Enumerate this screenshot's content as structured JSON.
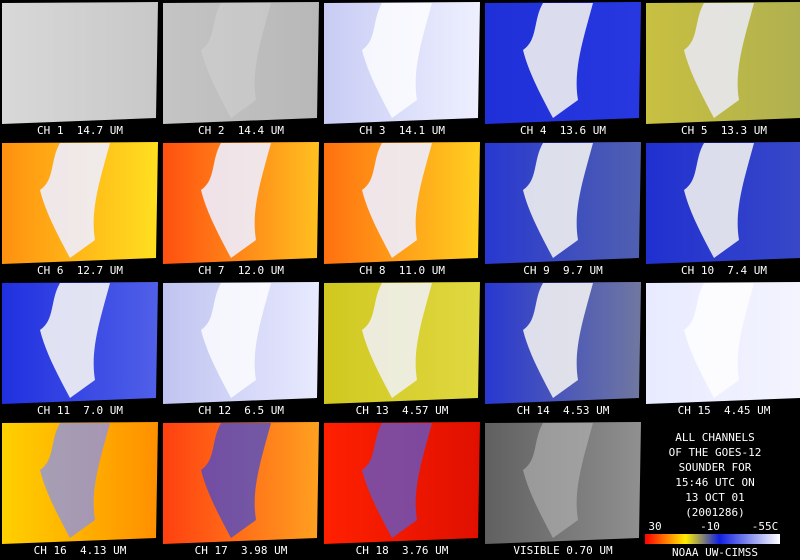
{
  "panels": [
    {
      "label": "CH 1  14.7 UM"
    },
    {
      "label": "CH 2  14.4 UM"
    },
    {
      "label": "CH 3  14.1 UM"
    },
    {
      "label": "CH 4  13.6 UM"
    },
    {
      "label": "CH 5  13.3 UM"
    },
    {
      "label": "CH 6  12.7 UM"
    },
    {
      "label": "CH 7  12.0 UM"
    },
    {
      "label": "CH 8  11.0 UM"
    },
    {
      "label": "CH 9  9.7 UM"
    },
    {
      "label": "CH 10  7.4 UM"
    },
    {
      "label": "CH 11  7.0 UM"
    },
    {
      "label": "CH 12  6.5 UM"
    },
    {
      "label": "CH 13  4.57 UM"
    },
    {
      "label": "CH 14  4.53 UM"
    },
    {
      "label": "CH 15  4.45 UM"
    },
    {
      "label": "CH 16  4.13 UM"
    },
    {
      "label": "CH 17  3.98 UM"
    },
    {
      "label": "CH 18  3.76 UM"
    },
    {
      "label": "VISIBLE 0.70 UM"
    }
  ],
  "legend": {
    "lines": [
      "ALL CHANNELS",
      "OF THE GOES-12",
      "SOUNDER FOR",
      "15:46 UTC ON",
      "13 OCT 01",
      "(2001286)"
    ],
    "scale_labels": [
      "30",
      "-10",
      "-55C"
    ],
    "credit": "NOAA UW-CIMSS"
  }
}
